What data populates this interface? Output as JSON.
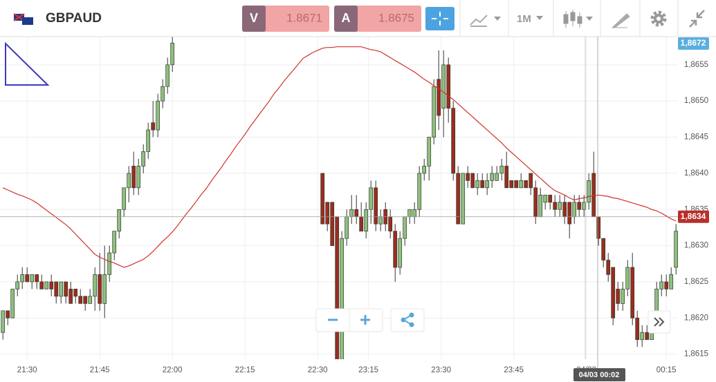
{
  "header": {
    "symbol": "GBPAUD",
    "bid": {
      "letter": "V",
      "price": "1.8671"
    },
    "ask": {
      "letter": "A",
      "price": "1.8675"
    },
    "timeframe": "1M"
  },
  "chart_data": {
    "type": "candlestick",
    "xlim": [
      -0.6,
      139.4
    ],
    "ylim": [
      1.86143,
      1.86589
    ],
    "yticks": [
      {
        "value": 1.8615,
        "label": "1,8615"
      },
      {
        "value": 1.862,
        "label": "1,8620"
      },
      {
        "value": 1.8625,
        "label": "1,8625"
      },
      {
        "value": 1.863,
        "label": "1,8630"
      },
      {
        "value": 1.8635,
        "label": "1,8635"
      },
      {
        "value": 1.864,
        "label": "1,8640"
      },
      {
        "value": 1.8645,
        "label": "1,8645"
      },
      {
        "value": 1.865,
        "label": "1,8650"
      },
      {
        "value": 1.8655,
        "label": "1,8655"
      }
    ],
    "xticks": [
      {
        "value": 5,
        "label": "21:30"
      },
      {
        "value": 20,
        "label": "21:45"
      },
      {
        "value": 35,
        "label": "22:00"
      },
      {
        "value": 50,
        "label": "22:15"
      },
      {
        "value": 65,
        "label": "22:30"
      },
      {
        "value": 75.5,
        "label": "23:15"
      },
      {
        "value": 90.5,
        "label": "23:30"
      },
      {
        "value": 105.5,
        "label": "23:45"
      },
      {
        "value": 120.5,
        "label": "04/03"
      },
      {
        "value": 137,
        "label": "00:15"
      }
    ],
    "grid": true,
    "up_color": "#8fbf7f",
    "down_color": "#9b2d1f",
    "ma_color": "#d0302a",
    "open": [
      1.8618,
      1.8621,
      1.862,
      1.8624,
      1.8625,
      1.8626,
      1.8625,
      1.8626,
      1.8625,
      1.8624,
      1.8625,
      1.8625,
      1.8623,
      1.8625,
      1.8624,
      1.8624,
      1.8623,
      1.8623,
      1.8622,
      1.8623,
      1.8626,
      1.8622,
      1.8626,
      1.8629,
      1.8632,
      1.8635,
      1.8638,
      1.8641,
      1.8638,
      1.8641,
      1.8643,
      1.8647,
      1.8646,
      1.865,
      1.8652,
      1.8655,
      null,
      null,
      null,
      null,
      null,
      null,
      null,
      null,
      null,
      null,
      null,
      null,
      null,
      null,
      null,
      null,
      null,
      null,
      null,
      null,
      null,
      null,
      null,
      null,
      null,
      null,
      null,
      null,
      null,
      null,
      1.864,
      1.8636,
      1.8636,
      1.8634,
      1.8614,
      1.8631,
      1.8634,
      1.8635,
      1.8634,
      1.8632,
      1.8635,
      1.8638,
      1.8633,
      1.8635,
      1.8634,
      1.8632,
      1.8627,
      1.8631,
      1.8634,
      1.8634,
      1.8635,
      1.864,
      1.8641,
      1.8645,
      1.8653,
      1.8649,
      1.8655,
      1.8649,
      1.864,
      1.8633,
      1.864,
      1.864,
      1.8638,
      1.8639,
      1.8638,
      1.8639,
      1.8639,
      1.864,
      1.8641,
      1.8639,
      1.8639,
      1.8638,
      1.8639,
      1.864,
      1.8638,
      1.8634,
      1.8636,
      1.8637,
      1.8636,
      1.8635,
      1.8636,
      1.8636,
      1.8634,
      1.8636,
      1.8635,
      1.8636,
      1.864,
      1.8634,
      1.8631,
      1.8628,
      1.8627,
      1.8624,
      1.8622,
      1.8624,
      1.8627,
      1.862,
      1.8617,
      1.8618,
      1.8617,
      1.8619,
      1.8624,
      1.8625,
      1.8624,
      1.8627
    ],
    "high": [
      1.8621,
      1.8621,
      1.8624,
      1.8626,
      1.8627,
      1.8627,
      1.8626,
      1.8626,
      1.8626,
      1.8625,
      1.8626,
      1.8625,
      1.8625,
      1.8625,
      1.8625,
      1.8624,
      1.8624,
      1.8623,
      1.8624,
      1.8627,
      1.8629,
      1.863,
      1.863,
      1.8632,
      1.8635,
      1.8638,
      1.8641,
      1.8643,
      1.8642,
      1.8644,
      1.8647,
      1.865,
      1.8651,
      1.8653,
      1.8656,
      1.8659,
      null,
      null,
      null,
      null,
      null,
      null,
      null,
      null,
      null,
      null,
      null,
      null,
      null,
      null,
      null,
      null,
      null,
      null,
      null,
      null,
      null,
      null,
      null,
      null,
      null,
      null,
      null,
      null,
      null,
      null,
      1.864,
      1.8636,
      1.8636,
      1.8634,
      1.8632,
      1.8635,
      1.8637,
      1.8637,
      1.8636,
      1.8636,
      1.8639,
      1.8639,
      1.8635,
      1.8636,
      1.8635,
      1.8633,
      1.8632,
      1.8634,
      1.8635,
      1.8636,
      1.8641,
      1.8642,
      1.8645,
      1.8653,
      1.8657,
      1.8657,
      1.8656,
      1.865,
      1.8641,
      1.864,
      1.8641,
      1.864,
      1.864,
      1.864,
      1.864,
      1.8641,
      1.8641,
      1.8642,
      1.8643,
      1.8639,
      1.8639,
      1.864,
      1.8639,
      1.864,
      1.8639,
      1.8638,
      1.8637,
      1.8637,
      1.8637,
      1.8637,
      1.8637,
      1.8636,
      1.8637,
      1.8637,
      1.8637,
      1.864,
      1.8643,
      1.8634,
      1.8631,
      1.8629,
      1.8627,
      1.8625,
      1.8625,
      1.8628,
      1.8629,
      1.8621,
      1.8619,
      1.8619,
      1.862,
      1.8625,
      1.8626,
      1.8626,
      1.8627,
      1.8633
    ],
    "low": [
      1.8617,
      1.8619,
      1.862,
      1.8623,
      1.8624,
      1.8625,
      1.8624,
      1.8624,
      1.8624,
      1.8624,
      1.8623,
      1.8622,
      1.8622,
      1.8622,
      1.8622,
      1.8622,
      1.8622,
      1.8621,
      1.8622,
      1.8621,
      1.8621,
      1.862,
      1.8625,
      1.8628,
      1.8631,
      1.8634,
      1.8636,
      1.8637,
      1.8637,
      1.864,
      1.8642,
      1.8645,
      1.8645,
      1.8649,
      1.8651,
      1.8654,
      null,
      null,
      null,
      null,
      null,
      null,
      null,
      null,
      null,
      null,
      null,
      null,
      null,
      null,
      null,
      null,
      null,
      null,
      null,
      null,
      null,
      null,
      null,
      null,
      null,
      null,
      null,
      null,
      null,
      null,
      1.8633,
      1.8632,
      1.863,
      1.8613,
      1.8614,
      1.863,
      1.8633,
      1.8633,
      1.8632,
      1.8631,
      1.8633,
      1.8632,
      1.8632,
      1.8632,
      1.8631,
      1.8625,
      1.8626,
      1.863,
      1.8633,
      1.8633,
      1.8634,
      1.8639,
      1.8639,
      1.8644,
      1.8646,
      1.8645,
      1.8647,
      1.8639,
      1.8633,
      1.8633,
      1.8638,
      1.8638,
      1.8637,
      1.8638,
      1.8637,
      1.8638,
      1.8639,
      1.8639,
      1.8638,
      1.8638,
      1.8638,
      1.8638,
      1.8638,
      1.8637,
      1.8633,
      1.8634,
      1.8635,
      1.8635,
      1.8634,
      1.8634,
      1.8633,
      1.8631,
      1.8633,
      1.8634,
      1.8634,
      1.8635,
      1.8634,
      1.863,
      1.8627,
      1.8625,
      1.8619,
      1.8621,
      1.8621,
      1.8623,
      1.8619,
      1.8616,
      1.8616,
      1.8617,
      1.8617,
      1.8618,
      1.8623,
      1.8623,
      1.8624,
      1.8626
    ],
    "close": [
      1.8621,
      1.862,
      1.8624,
      1.8625,
      1.8626,
      1.8625,
      1.8626,
      1.8625,
      1.8624,
      1.8625,
      1.8624,
      1.8623,
      1.8625,
      1.8623,
      1.8622,
      1.8623,
      1.8622,
      1.8622,
      1.8623,
      1.8626,
      1.8622,
      1.8626,
      1.8629,
      1.8632,
      1.8635,
      1.8638,
      1.864,
      1.8638,
      1.8641,
      1.8643,
      1.8646,
      1.8646,
      1.865,
      1.8652,
      1.8655,
      1.8658,
      null,
      null,
      null,
      null,
      null,
      null,
      null,
      null,
      null,
      null,
      null,
      null,
      null,
      null,
      null,
      null,
      null,
      null,
      null,
      null,
      null,
      null,
      null,
      null,
      null,
      null,
      null,
      null,
      null,
      null,
      1.8633,
      1.8633,
      1.863,
      1.8613,
      1.8631,
      1.8634,
      1.8635,
      1.8634,
      1.8632,
      1.8635,
      1.8638,
      1.8633,
      1.8634,
      1.8633,
      1.8632,
      1.8627,
      1.8631,
      1.8634,
      1.8635,
      1.8635,
      1.864,
      1.8641,
      1.8645,
      1.8652,
      1.8648,
      1.8655,
      1.8649,
      1.864,
      1.8633,
      1.864,
      1.8639,
      1.8638,
      1.8639,
      1.8638,
      1.8639,
      1.864,
      1.864,
      1.8641,
      1.8638,
      1.8638,
      1.8638,
      1.8639,
      1.8638,
      1.8638,
      1.8634,
      1.8637,
      1.8637,
      1.8636,
      1.8635,
      1.8636,
      1.8634,
      1.8633,
      1.8636,
      1.8635,
      1.8636,
      1.8639,
      1.8634,
      1.8631,
      1.8628,
      1.8626,
      1.862,
      1.8622,
      1.8624,
      1.8627,
      1.862,
      1.8617,
      1.8618,
      1.8617,
      1.8619,
      1.8624,
      1.8625,
      1.8624,
      1.8626,
      1.8632
    ],
    "ma": [
      1.8638,
      1.86377,
      1.86374,
      1.86371,
      1.86369,
      1.86366,
      1.86363,
      1.86359,
      1.86354,
      1.86349,
      1.86344,
      1.86339,
      1.86334,
      1.86329,
      1.86323,
      1.86316,
      1.86309,
      1.86302,
      1.86295,
      1.86288,
      1.86284,
      1.86281,
      1.86278,
      1.86276,
      1.86273,
      1.8627,
      1.86272,
      1.86275,
      1.86278,
      1.86281,
      1.86286,
      1.86292,
      1.86299,
      1.86306,
      1.86312,
      1.86319,
      1.86327,
      1.86336,
      1.86345,
      1.86353,
      1.86362,
      1.86371,
      1.86379,
      1.86389,
      1.86398,
      1.86407,
      1.86417,
      1.86426,
      1.86436,
      1.86445,
      1.86454,
      1.86464,
      1.86473,
      1.86482,
      1.86491,
      1.865,
      1.8651,
      1.86518,
      1.86527,
      1.86535,
      1.86543,
      1.86551,
      1.86559,
      1.86563,
      1.86567,
      1.8657,
      1.86573,
      1.86574,
      1.86574,
      1.86575,
      1.86575,
      1.86575,
      1.86575,
      1.86575,
      1.86575,
      1.86573,
      1.86571,
      1.8657,
      1.86568,
      1.86564,
      1.8656,
      1.86556,
      1.86552,
      1.86548,
      1.86544,
      1.8654,
      1.86535,
      1.8653,
      1.86526,
      1.86521,
      1.86517,
      1.86512,
      1.86507,
      1.86502,
      1.86496,
      1.8649,
      1.86484,
      1.86478,
      1.86472,
      1.86466,
      1.8646,
      1.86454,
      1.86448,
      1.86442,
      1.86435,
      1.86429,
      1.86423,
      1.86417,
      1.86411,
      1.86405,
      1.86399,
      1.86393,
      1.86387,
      1.86381,
      1.86376,
      1.86373,
      1.8637,
      1.86366,
      1.86363,
      1.86365,
      1.86366,
      1.86368,
      1.86369,
      1.8637,
      1.86369,
      1.86368,
      1.86366,
      1.86365,
      1.86363,
      1.86361,
      1.86359,
      1.86357,
      1.86355,
      1.86353,
      1.8635,
      1.86348,
      1.86345,
      1.86341,
      1.86337,
      1.86334
    ],
    "price_line": {
      "value": 1.8634,
      "label": "1,8634"
    },
    "top_label": "1,8672",
    "crosshair_label": "04/03 00:02"
  }
}
